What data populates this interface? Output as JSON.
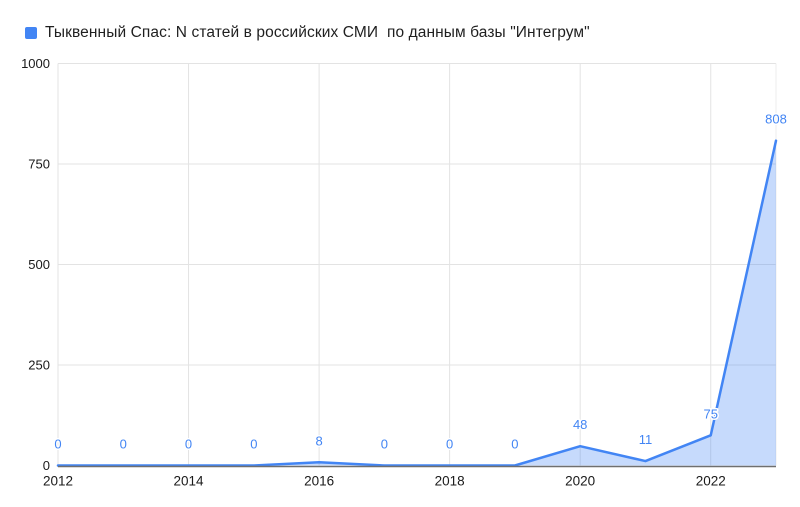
{
  "chart_data": {
    "type": "area",
    "title": "Тыквенный Спас: N статей в российских СМИ  по данным базы \"Интегрум\"",
    "x": [
      2012,
      2013,
      2014,
      2015,
      2016,
      2017,
      2018,
      2019,
      2020,
      2021,
      2022,
      2023
    ],
    "values": [
      0,
      0,
      0,
      0,
      8,
      0,
      0,
      0,
      48,
      11,
      75,
      808
    ],
    "data_labels": [
      "0",
      "0",
      "0",
      "0",
      "8",
      "0",
      "0",
      "0",
      "48",
      "11",
      "75",
      "808"
    ],
    "xticks": [
      2012,
      2014,
      2016,
      2018,
      2020,
      2022
    ],
    "yticks": [
      0,
      250,
      500,
      750,
      1000
    ],
    "ylim": [
      0,
      1000
    ],
    "grid": "on",
    "legend_position": "top-left",
    "colors": {
      "line": "#4285f4",
      "fill": "rgba(66,133,244,0.3)",
      "data_label": "#4285f4",
      "grid": "#e3e3e3",
      "right_border": "#ececec",
      "axis": "#6f6f6f",
      "tick_text": "#1a1a1a",
      "legend_marker": "#4285f4"
    }
  }
}
